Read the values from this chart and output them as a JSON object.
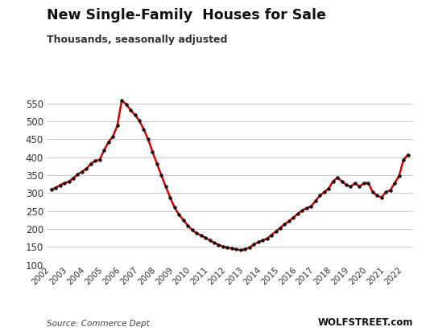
{
  "title": "New Single-Family  Houses for Sale",
  "subtitle": "Thousands, seasonally adjusted",
  "source_left": "Source: Commerce Dept.",
  "source_right": "WOLFSTREET.com",
  "ylim": [
    100,
    580
  ],
  "yticks": [
    100,
    150,
    200,
    250,
    300,
    350,
    400,
    450,
    500,
    550
  ],
  "data": [
    [
      2002.0,
      310
    ],
    [
      2002.25,
      315
    ],
    [
      2002.5,
      322
    ],
    [
      2002.75,
      328
    ],
    [
      2003.0,
      332
    ],
    [
      2003.25,
      342
    ],
    [
      2003.5,
      352
    ],
    [
      2003.75,
      360
    ],
    [
      2004.0,
      368
    ],
    [
      2004.25,
      382
    ],
    [
      2004.5,
      390
    ],
    [
      2004.75,
      393
    ],
    [
      2005.0,
      420
    ],
    [
      2005.25,
      442
    ],
    [
      2005.5,
      458
    ],
    [
      2005.75,
      488
    ],
    [
      2006.0,
      558
    ],
    [
      2006.25,
      548
    ],
    [
      2006.5,
      532
    ],
    [
      2006.75,
      518
    ],
    [
      2007.0,
      502
    ],
    [
      2007.25,
      478
    ],
    [
      2007.5,
      450
    ],
    [
      2007.75,
      415
    ],
    [
      2008.0,
      382
    ],
    [
      2008.25,
      350
    ],
    [
      2008.5,
      318
    ],
    [
      2008.75,
      288
    ],
    [
      2009.0,
      260
    ],
    [
      2009.25,
      240
    ],
    [
      2009.5,
      225
    ],
    [
      2009.75,
      210
    ],
    [
      2010.0,
      197
    ],
    [
      2010.25,
      188
    ],
    [
      2010.5,
      182
    ],
    [
      2010.75,
      176
    ],
    [
      2011.0,
      168
    ],
    [
      2011.25,
      161
    ],
    [
      2011.5,
      156
    ],
    [
      2011.75,
      151
    ],
    [
      2012.0,
      148
    ],
    [
      2012.25,
      146
    ],
    [
      2012.5,
      143
    ],
    [
      2012.75,
      141
    ],
    [
      2013.0,
      143
    ],
    [
      2013.25,
      148
    ],
    [
      2013.5,
      157
    ],
    [
      2013.75,
      163
    ],
    [
      2014.0,
      168
    ],
    [
      2014.25,
      173
    ],
    [
      2014.5,
      183
    ],
    [
      2014.75,
      193
    ],
    [
      2015.0,
      203
    ],
    [
      2015.25,
      213
    ],
    [
      2015.5,
      222
    ],
    [
      2015.75,
      232
    ],
    [
      2016.0,
      242
    ],
    [
      2016.25,
      252
    ],
    [
      2016.5,
      258
    ],
    [
      2016.75,
      263
    ],
    [
      2017.0,
      278
    ],
    [
      2017.25,
      293
    ],
    [
      2017.5,
      303
    ],
    [
      2017.75,
      313
    ],
    [
      2018.0,
      333
    ],
    [
      2018.25,
      343
    ],
    [
      2018.5,
      333
    ],
    [
      2018.75,
      323
    ],
    [
      2019.0,
      318
    ],
    [
      2019.25,
      328
    ],
    [
      2019.5,
      318
    ],
    [
      2019.75,
      328
    ],
    [
      2020.0,
      328
    ],
    [
      2020.25,
      303
    ],
    [
      2020.5,
      293
    ],
    [
      2020.75,
      288
    ],
    [
      2021.0,
      303
    ],
    [
      2021.25,
      308
    ],
    [
      2021.5,
      328
    ],
    [
      2021.75,
      348
    ],
    [
      2022.0,
      393
    ],
    [
      2022.25,
      407
    ]
  ],
  "line_color": "#cc0000",
  "dot_color": "#111111",
  "grid_color": "#cccccc",
  "bg_color": "#ffffff",
  "title_color": "#111111",
  "subtitle_color": "#333333",
  "axis_label_color": "#333333",
  "source_color": "#444444",
  "wolfstreet_color": "#111111"
}
